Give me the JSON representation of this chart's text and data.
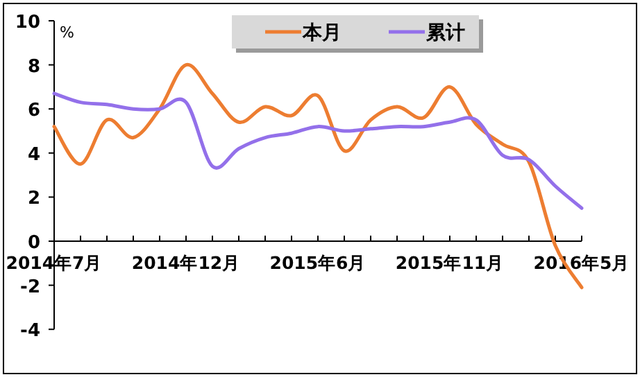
{
  "chart_data": {
    "type": "line",
    "ylabel": "%",
    "legend": "top",
    "ylim": [
      -4,
      10
    ],
    "yticks": [
      -4,
      -2,
      0,
      2,
      4,
      6,
      8,
      10
    ],
    "categories": [
      "2014年7月",
      null,
      null,
      null,
      null,
      "2014年12月",
      null,
      null,
      null,
      null,
      "2015年6月",
      null,
      null,
      null,
      null,
      "2015年11月",
      null,
      null,
      null,
      null,
      "2016年5月"
    ],
    "series": [
      {
        "name": "本月",
        "color": "#ed7d31",
        "values": [
          5.2,
          3.5,
          5.5,
          4.7,
          6.0,
          8.0,
          6.7,
          5.4,
          6.1,
          5.7,
          6.6,
          4.1,
          5.5,
          6.1,
          5.6,
          7.0,
          5.3,
          4.4,
          3.6,
          -0.2,
          -2.1
        ]
      },
      {
        "name": "累计",
        "color": "#9370ea",
        "values": [
          6.7,
          6.3,
          6.2,
          6.0,
          6.0,
          6.3,
          3.4,
          4.2,
          4.7,
          4.9,
          5.2,
          5.0,
          5.1,
          5.2,
          5.2,
          5.4,
          5.5,
          3.9,
          3.7,
          2.5,
          1.5
        ]
      }
    ]
  }
}
